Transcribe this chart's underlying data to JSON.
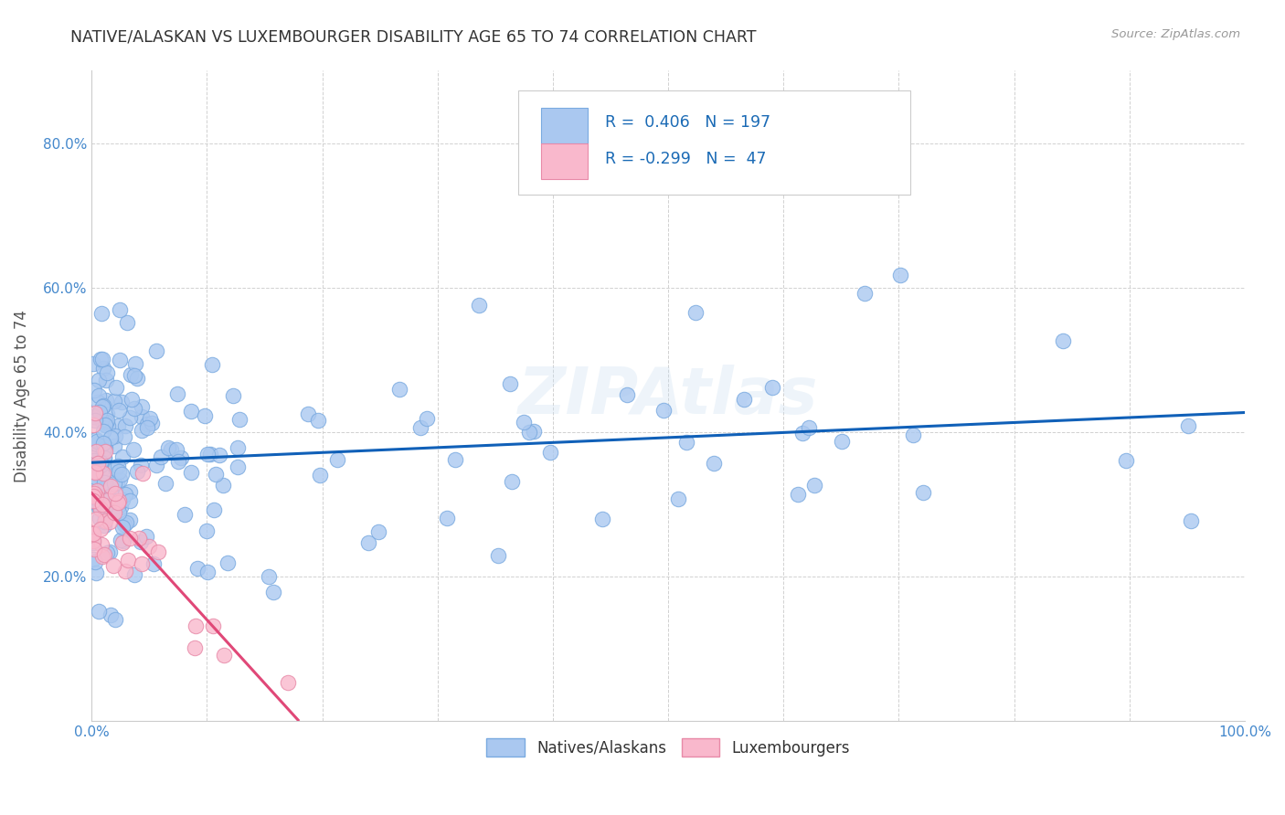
{
  "title": "NATIVE/ALASKAN VS LUXEMBOURGER DISABILITY AGE 65 TO 74 CORRELATION CHART",
  "source": "Source: ZipAtlas.com",
  "ylabel": "Disability Age 65 to 74",
  "xlim": [
    0.0,
    1.0
  ],
  "ylim": [
    0.0,
    0.9
  ],
  "xticks": [
    0.0,
    0.1,
    0.2,
    0.3,
    0.4,
    0.5,
    0.6,
    0.7,
    0.8,
    0.9,
    1.0
  ],
  "xticklabels": [
    "0.0%",
    "",
    "",
    "",
    "",
    "",
    "",
    "",
    "",
    "",
    "100.0%"
  ],
  "yticks": [
    0.0,
    0.2,
    0.4,
    0.6,
    0.8
  ],
  "yticklabels": [
    "",
    "20.0%",
    "40.0%",
    "60.0%",
    "80.0%"
  ],
  "native_color": "#aac8f0",
  "native_edge_color": "#7aaae0",
  "luxembourger_color": "#f9b8cc",
  "luxembourger_edge_color": "#e88aa8",
  "trend_native_color": "#1060b8",
  "trend_luxembourger_color": "#e04878",
  "legend_native_label": "Natives/Alaskans",
  "legend_luxembourger_label": "Luxembourgers",
  "r_native": 0.406,
  "n_native": 197,
  "r_luxembourger": -0.299,
  "n_luxembourger": 47,
  "watermark": "ZIPAtlas",
  "background_color": "#ffffff",
  "grid_color": "#cccccc",
  "title_color": "#333333",
  "axis_label_color": "#555555",
  "tick_label_color": "#4488cc",
  "legend_r_color": "#1a6ab5"
}
